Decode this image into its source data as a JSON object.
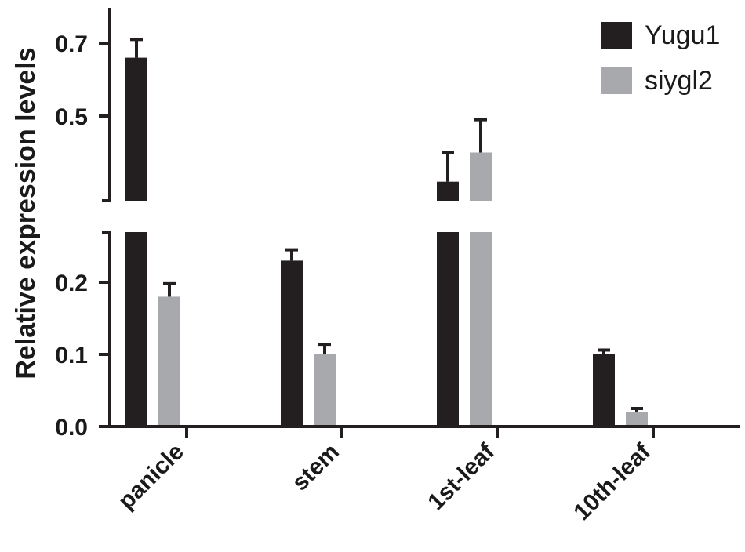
{
  "chart_data": {
    "type": "bar",
    "categories": [
      "panicle",
      "stem",
      "1st-leaf",
      "10th-leaf"
    ],
    "series": [
      {
        "name": "Yugu1",
        "color": "#231f20",
        "values": [
          0.66,
          0.23,
          0.32,
          0.1
        ],
        "errors": [
          0.05,
          0.015,
          0.08,
          0.006
        ]
      },
      {
        "name": "siygl2",
        "color": "#a7a9ac",
        "values": [
          0.18,
          0.1,
          0.4,
          0.02
        ],
        "errors": [
          0.018,
          0.014,
          0.09,
          0.005
        ]
      }
    ],
    "ylabel": "Relative expression levels",
    "xlabel": "",
    "y_axis": {
      "broken": true,
      "lower_segment": {
        "range": [
          0,
          0.27
        ],
        "ticks": [
          "0.0",
          "0.1",
          "0.2"
        ],
        "tick_values": [
          0.0,
          0.1,
          0.2
        ]
      },
      "upper_segment": {
        "range": [
          0.28,
          0.79
        ],
        "ticks": [
          "0.5",
          "0.7"
        ],
        "tick_values": [
          0.5,
          0.7
        ]
      }
    },
    "legend_position": "top-right",
    "grid": false
  }
}
